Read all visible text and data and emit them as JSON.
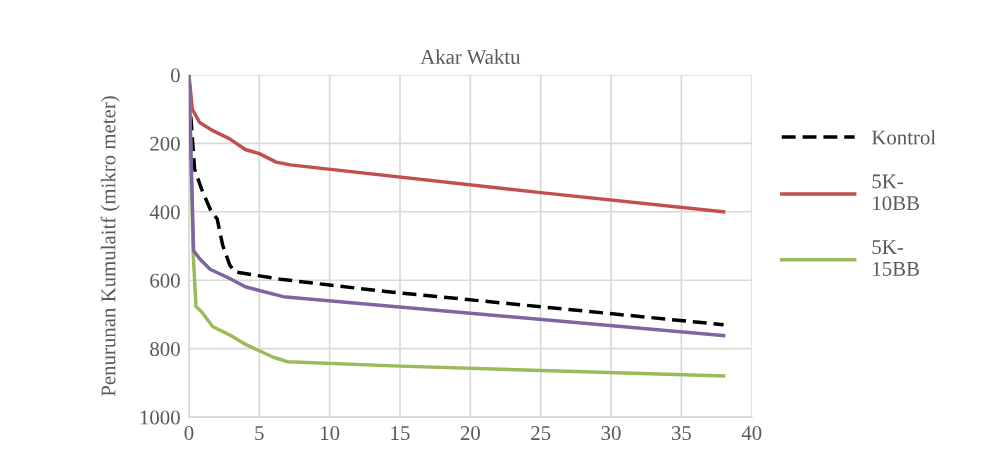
{
  "chart_data": {
    "type": "line",
    "title": "Akar Waktu",
    "ylabel": "Penurunan Kumulaitf (mikro meter)",
    "xlim": [
      0,
      40
    ],
    "xticks": [
      0,
      5,
      10,
      15,
      20,
      25,
      30,
      35,
      40
    ],
    "ylim": [
      1000,
      0
    ],
    "yticks": [
      0,
      200,
      400,
      600,
      800,
      1000
    ],
    "grid": true,
    "legend": "right",
    "marker": "none",
    "series": [
      {
        "name": "Kontrol",
        "color": "#000000",
        "line_style": "dashed",
        "x": [
          0,
          0.1,
          0.4,
          0.9,
          1.6,
          2.0,
          2.4,
          2.9,
          3.3,
          6.5,
          10,
          14,
          38
        ],
        "values": [
          0,
          100,
          275,
          334,
          401,
          420,
          498,
          556,
          576,
          597,
          614,
          633,
          730
        ]
      },
      {
        "name": "5K-10BB",
        "color": "#c0504d",
        "x": [
          0,
          0.24,
          0.76,
          1.7,
          2.9,
          4.0,
          5.0,
          6.2,
          7.2,
          25,
          38
        ],
        "values": [
          0,
          100,
          139,
          163,
          187,
          218,
          230,
          255,
          263,
          344,
          400
        ]
      },
      {
        "name": "5K-15BB",
        "color": "#9bbb59",
        "x": [
          0,
          0.3,
          0.5,
          0.9,
          1.7,
          2.9,
          4.1,
          5.0,
          6.0,
          7.0,
          15,
          38
        ],
        "values": [
          0,
          518,
          677,
          692,
          736,
          760,
          789,
          806,
          825,
          838,
          851,
          880
        ]
      },
      {
        "color": "#8064a2",
        "x": [
          0,
          0.33,
          0.76,
          1.5,
          2.9,
          4.0,
          5.0,
          6.7,
          38
        ],
        "values": [
          0,
          513,
          537,
          568,
          595,
          619,
          630,
          648,
          762
        ]
      }
    ]
  }
}
